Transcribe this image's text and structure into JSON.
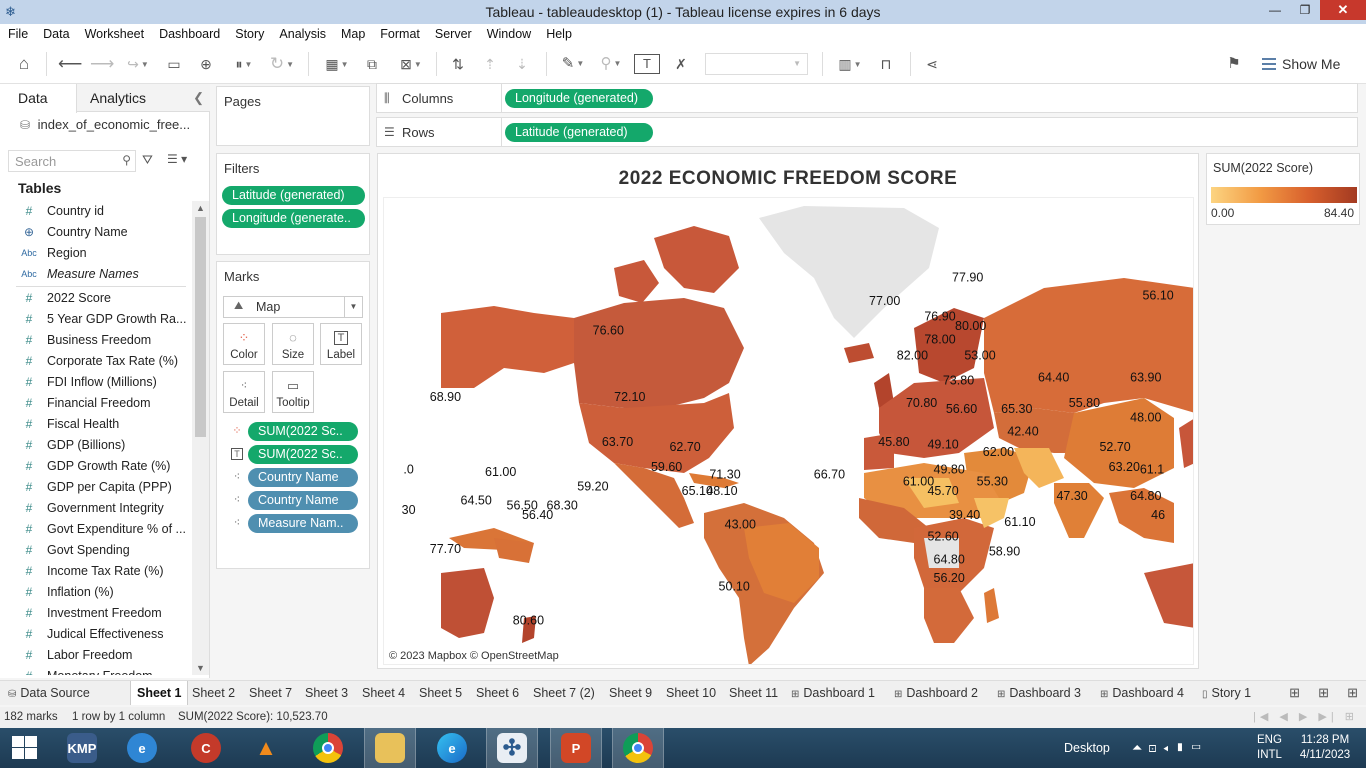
{
  "window": {
    "title": "Tableau - tableaudesktop (1) - Tableau license expires in 6 days",
    "minimize": "—",
    "restore": "❐",
    "close": "✕"
  },
  "menu": [
    "File",
    "Data",
    "Worksheet",
    "Dashboard",
    "Story",
    "Analysis",
    "Map",
    "Format",
    "Server",
    "Window",
    "Help"
  ],
  "toolbar": {
    "show_me": "Show Me"
  },
  "data_pane": {
    "tab_data": "Data",
    "tab_analytics": "Analytics",
    "datasource": "index_of_economic_free...",
    "search_placeholder": "Search",
    "tables_heading": "Tables",
    "dimensions": [
      {
        "type": "#",
        "name": "Country id"
      },
      {
        "type": "globe",
        "name": "Country Name"
      },
      {
        "type": "Abc",
        "name": "Region"
      },
      {
        "type": "Abc",
        "name": "Measure Names",
        "italic": true
      }
    ],
    "measures": [
      "2022 Score",
      "5 Year GDP Growth Ra...",
      "Business Freedom",
      "Corporate Tax Rate (%)",
      "FDI Inflow (Millions)",
      "Financial Freedom",
      "Fiscal Health",
      "GDP (Billions)",
      "GDP Growth Rate (%)",
      "GDP per Capita (PPP)",
      "Government Integrity",
      "Govt Expenditure % of ...",
      "Govt Spending",
      "Income Tax Rate (%)",
      "Inflation (%)",
      "Investment Freedom",
      "Judical Effectiveness",
      "Labor Freedom",
      "Monetary Freedom"
    ]
  },
  "cards": {
    "pages": "Pages",
    "filters": "Filters",
    "filter_pills": [
      "Latitude (generated)",
      "Longitude (generate.."
    ],
    "marks": "Marks",
    "mark_type": "Map",
    "mark_buttons": [
      "Color",
      "Size",
      "Label",
      "Detail",
      "Tooltip"
    ],
    "mark_pills": [
      {
        "icon": "color",
        "label": "SUM(2022 Sc..",
        "kind": "green"
      },
      {
        "icon": "label",
        "label": "SUM(2022 Sc..",
        "kind": "green"
      },
      {
        "icon": "detail",
        "label": "Country Name",
        "kind": "blue"
      },
      {
        "icon": "detail",
        "label": "Country Name",
        "kind": "blue"
      },
      {
        "icon": "detail",
        "label": "Measure Nam..",
        "kind": "blue"
      }
    ]
  },
  "shelves": {
    "columns_label": "Columns",
    "columns_pill": "Longitude (generated)",
    "rows_label": "Rows",
    "rows_pill": "Latitude (generated)"
  },
  "viz": {
    "title": "2022 ECONOMIC FREEDOM SCORE",
    "attribution": "© 2023 Mapbox © OpenStreetMap",
    "colors": {
      "low": "#fcd481",
      "mid": "#e07b34",
      "high": "#a33a21",
      "ocean": "#ffffff",
      "land_nodata": "#e5e5e5"
    },
    "labels": [
      {
        "text": "76.60",
        "lon": -105,
        "lat": 58
      },
      {
        "text": "72.10",
        "lon": -98,
        "lat": 40
      },
      {
        "text": "63.70",
        "lon": -102,
        "lat": 24
      },
      {
        "text": "62.70",
        "lon": -80,
        "lat": 22
      },
      {
        "text": "59.60",
        "lon": -86,
        "lat": 14
      },
      {
        "text": "71.30",
        "lon": -67,
        "lat": 11
      },
      {
        "text": "65.10",
        "lon": -76,
        "lat": 4
      },
      {
        "text": "48.10",
        "lon": -68,
        "lat": 4
      },
      {
        "text": "43.00",
        "lon": -62,
        "lat": -10
      },
      {
        "text": "50.10",
        "lon": -64,
        "lat": -34
      },
      {
        "text": "68.90",
        "lon": -158,
        "lat": 40
      },
      {
        "text": "61.00",
        "lon": -140,
        "lat": 12
      },
      {
        "text": "59.20",
        "lon": -110,
        "lat": 6
      },
      {
        "text": "64.50",
        "lon": -148,
        "lat": 0
      },
      {
        "text": "56.50",
        "lon": -133,
        "lat": -2
      },
      {
        "text": "56.40",
        "lon": -128,
        "lat": -6
      },
      {
        "text": "68.30",
        "lon": -120,
        "lat": -2
      },
      {
        "text": "77.70",
        "lon": -158,
        "lat": -20
      },
      {
        "text": "80.60",
        "lon": -131,
        "lat": -45
      },
      {
        "text": "77.00",
        "lon": -15,
        "lat": 64
      },
      {
        "text": "77.90",
        "lon": 12,
        "lat": 68
      },
      {
        "text": "76.90",
        "lon": 3,
        "lat": 61
      },
      {
        "text": "80.00",
        "lon": 13,
        "lat": 59
      },
      {
        "text": "78.00",
        "lon": 3,
        "lat": 56
      },
      {
        "text": "82.00",
        "lon": -6,
        "lat": 52
      },
      {
        "text": "53.00",
        "lon": 16,
        "lat": 52
      },
      {
        "text": "73.80",
        "lon": 9,
        "lat": 45
      },
      {
        "text": "70.80",
        "lon": -3,
        "lat": 38
      },
      {
        "text": "56.60",
        "lon": 10,
        "lat": 36
      },
      {
        "text": "65.30",
        "lon": 28,
        "lat": 36
      },
      {
        "text": "64.40",
        "lon": 40,
        "lat": 46
      },
      {
        "text": "55.80",
        "lon": 50,
        "lat": 38
      },
      {
        "text": "63.90",
        "lon": 70,
        "lat": 46
      },
      {
        "text": "56.10",
        "lon": 74,
        "lat": 65
      },
      {
        "text": "48.00",
        "lon": 70,
        "lat": 33
      },
      {
        "text": "42.40",
        "lon": 30,
        "lat": 28
      },
      {
        "text": "45.80",
        "lon": -12,
        "lat": 24
      },
      {
        "text": "49.10",
        "lon": 4,
        "lat": 23
      },
      {
        "text": "62.00",
        "lon": 22,
        "lat": 20
      },
      {
        "text": "52.70",
        "lon": 60,
        "lat": 22
      },
      {
        "text": "66.70",
        "lon": -33,
        "lat": 11
      },
      {
        "text": "49.80",
        "lon": 6,
        "lat": 13
      },
      {
        "text": "61.00",
        "lon": -4,
        "lat": 8
      },
      {
        "text": "55.30",
        "lon": 20,
        "lat": 8
      },
      {
        "text": "45.70",
        "lon": 4,
        "lat": 4
      },
      {
        "text": "39.40",
        "lon": 11,
        "lat": -6
      },
      {
        "text": "61.10",
        "lon": 29,
        "lat": -9
      },
      {
        "text": "52.60",
        "lon": 4,
        "lat": -15
      },
      {
        "text": "58.90",
        "lon": 24,
        "lat": -21
      },
      {
        "text": "64.80",
        "lon": 6,
        "lat": -24
      },
      {
        "text": "56.20",
        "lon": 6,
        "lat": -31
      },
      {
        "text": "47.30",
        "lon": 46,
        "lat": 2
      },
      {
        "text": "63.20",
        "lon": 63,
        "lat": 14
      },
      {
        "text": "61.1",
        "lon": 72,
        "lat": 13
      },
      {
        "text": "64.80",
        "lon": 70,
        "lat": 2
      },
      {
        "text": "46",
        "lon": 74,
        "lat": -6
      },
      {
        "text": ".0",
        "lon": -170,
        "lat": 13
      },
      {
        "text": "30",
        "lon": -170,
        "lat": -4
      }
    ]
  },
  "legend": {
    "title": "SUM(2022 Score)",
    "min": "0.00",
    "max": "84.40"
  },
  "sheet_tabs": [
    {
      "label": "Data Source",
      "icon": "ds"
    },
    {
      "label": "Sheet 1",
      "active": true
    },
    {
      "label": "Sheet 2"
    },
    {
      "label": "Sheet 7"
    },
    {
      "label": "Sheet 3"
    },
    {
      "label": "Sheet 4"
    },
    {
      "label": "Sheet 5"
    },
    {
      "label": "Sheet 6"
    },
    {
      "label": "Sheet 7 (2)"
    },
    {
      "label": "Sheet 9"
    },
    {
      "label": "Sheet 10"
    },
    {
      "label": "Sheet 11"
    },
    {
      "label": "Dashboard 1",
      "icon": "db"
    },
    {
      "label": "Dashboard 2",
      "icon": "db"
    },
    {
      "label": "Dashboard 3",
      "icon": "db"
    },
    {
      "label": "Dashboard 4",
      "icon": "db"
    },
    {
      "label": "Story 1",
      "icon": "st"
    }
  ],
  "status": {
    "marks": "182 marks",
    "rows_cols": "1 row by 1 column",
    "sum": "SUM(2022 Score): 10,523.70"
  },
  "taskbar": {
    "desktop": "Desktop",
    "lang_1": "ENG",
    "lang_2": "INTL",
    "time": "11:28 PM",
    "date": "4/11/2023",
    "apps": [
      "kmplayer",
      "internet-explorer",
      "ccleaner",
      "vlc",
      "chrome",
      "file-explorer",
      "edge",
      "tableau",
      "powerpoint",
      "chrome"
    ]
  }
}
